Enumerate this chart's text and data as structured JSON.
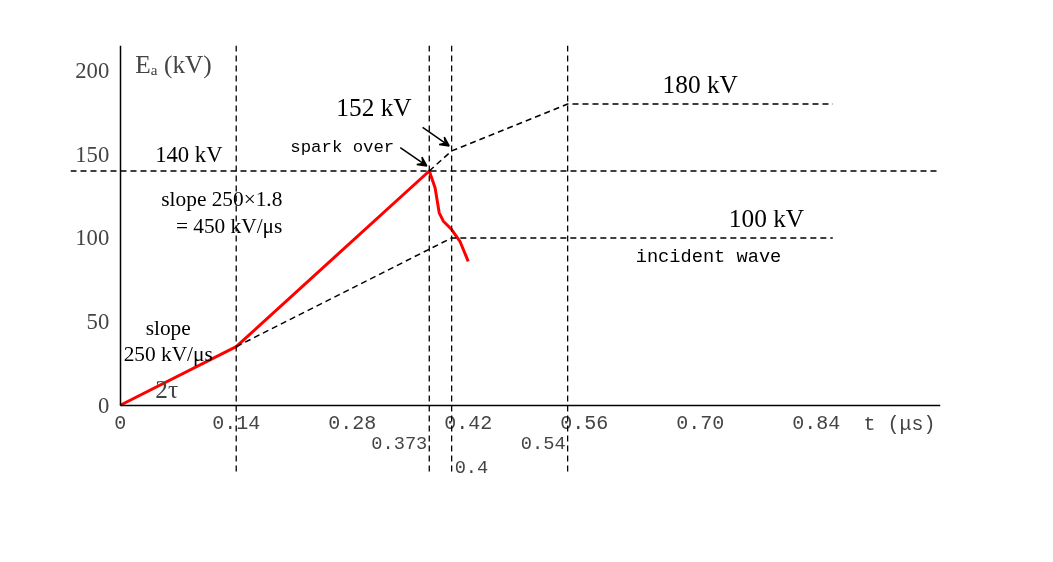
{
  "chart_data": {
    "type": "line",
    "xlabel": "t (μs)",
    "ylabel": "Eₐ (kV)",
    "xlim": [
      -0.06,
      0.99
    ],
    "ylim": [
      -42,
      215
    ],
    "xticks": [
      0,
      0.14,
      0.28,
      0.42,
      0.56,
      {
        "value": 0.7,
        "label": "0.70"
      },
      0.84
    ],
    "yticks": [
      0,
      50,
      100,
      150,
      200
    ],
    "series": [
      {
        "color": "#ff0000",
        "line_style": "solid",
        "x": [
          0,
          0.14,
          0.373,
          0.38,
          0.385,
          0.39,
          0.4,
          0.41,
          0.42
        ],
        "values": [
          0,
          35,
          140,
          130,
          115,
          110,
          105,
          98,
          86
        ]
      },
      {
        "name": "incident wave",
        "color": "#000000",
        "line_style": "dashed",
        "x": [
          0.14,
          0.4,
          0.86
        ],
        "values": [
          35,
          100,
          100
        ]
      },
      {
        "color": "#000000",
        "line_style": "dashed",
        "x": [
          0.373,
          0.4,
          0.54,
          0.86
        ],
        "values": [
          140,
          152,
          180,
          180
        ]
      }
    ],
    "ref_lines": [
      {
        "axis": "y",
        "value": 140,
        "label": "140 kV",
        "line_style": "dashed"
      },
      {
        "axis": "x",
        "value": 0.14,
        "label": null,
        "line_style": "dashed"
      },
      {
        "axis": "x",
        "value": 0.373,
        "label": "0.373",
        "line_style": "dashed"
      },
      {
        "axis": "x",
        "value": 0.4,
        "label": "0.4",
        "line_style": "dashed"
      },
      {
        "axis": "x",
        "value": 0.54,
        "label": "0.54",
        "line_style": "dashed"
      }
    ],
    "annotations": [
      {
        "text": "152 kV",
        "x": 0.4,
        "y": 152
      },
      {
        "text": "spark over",
        "x": 0.373,
        "y": 140
      },
      {
        "text": "180 kV",
        "x": 0.7,
        "y": 180
      },
      {
        "text": "100 kV",
        "x": 0.78,
        "y": 100
      },
      {
        "text": "slope 250×1.8\n= 450 kV/μs",
        "x": 0.25,
        "y": 87
      },
      {
        "text": "slope\n250 kV/μs",
        "x": 0.07,
        "y": 17.5
      },
      "2τ"
    ],
    "grid": false,
    "marker": "none"
  }
}
